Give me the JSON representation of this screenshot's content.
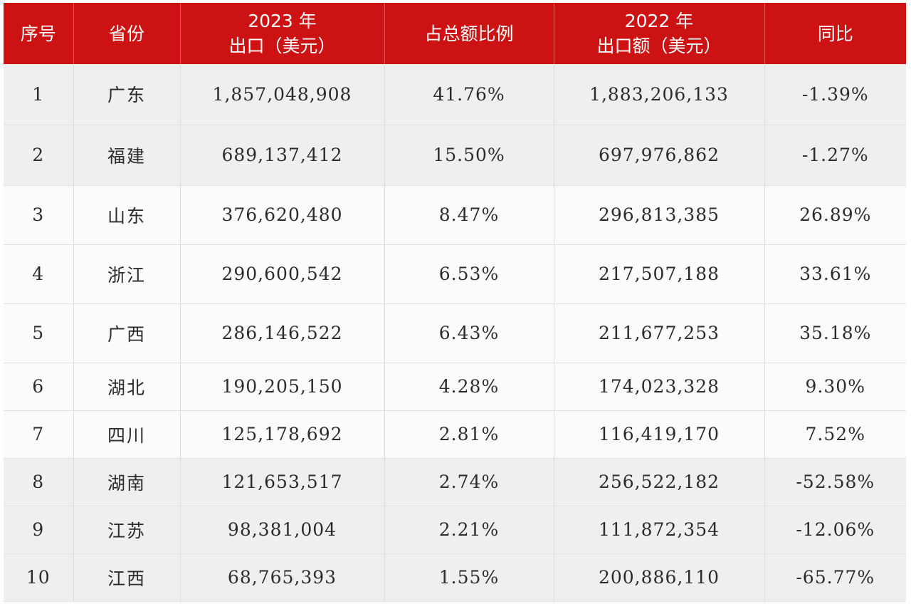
{
  "table": {
    "headers": [
      {
        "line1": "序号",
        "line2": ""
      },
      {
        "line1": "省份",
        "line2": ""
      },
      {
        "line1": "2023 年",
        "line2": "出口（美元）"
      },
      {
        "line1": "占总额比例",
        "line2": ""
      },
      {
        "line1": "2022 年",
        "line2": "出口额（美元）"
      },
      {
        "line1": "同比",
        "line2": ""
      }
    ],
    "rows": [
      {
        "no": "1",
        "province": "广东",
        "export_2023": "1,857,048,908",
        "share": "41.76%",
        "export_2022": "1,883,206,133",
        "yoy": "-1.39%"
      },
      {
        "no": "2",
        "province": "福建",
        "export_2023": "689,137,412",
        "share": "15.50%",
        "export_2022": "697,976,862",
        "yoy": "-1.27%"
      },
      {
        "no": "3",
        "province": "山东",
        "export_2023": "376,620,480",
        "share": "8.47%",
        "export_2022": "296,813,385",
        "yoy": "26.89%"
      },
      {
        "no": "4",
        "province": "浙江",
        "export_2023": "290,600,542",
        "share": "6.53%",
        "export_2022": "217,507,188",
        "yoy": "33.61%"
      },
      {
        "no": "5",
        "province": "广西",
        "export_2023": "286,146,522",
        "share": "6.43%",
        "export_2022": "211,677,253",
        "yoy": "35.18%"
      },
      {
        "no": "6",
        "province": "湖北",
        "export_2023": "190,205,150",
        "share": "4.28%",
        "export_2022": "174,023,328",
        "yoy": "9.30%"
      },
      {
        "no": "7",
        "province": "四川",
        "export_2023": "125,178,692",
        "share": "2.81%",
        "export_2022": "116,419,170",
        "yoy": "7.52%"
      },
      {
        "no": "8",
        "province": "湖南",
        "export_2023": "121,653,517",
        "share": "2.74%",
        "export_2022": "256,522,182",
        "yoy": "-52.58%"
      },
      {
        "no": "9",
        "province": "江苏",
        "export_2023": "98,381,004",
        "share": "2.21%",
        "export_2022": "111,872,354",
        "yoy": "-12.06%"
      },
      {
        "no": "10",
        "province": "江西",
        "export_2023": "68,765,393",
        "share": "1.55%",
        "export_2022": "200,886,110",
        "yoy": "-65.77%"
      }
    ]
  },
  "colors": {
    "header_bg": "#cc1212",
    "header_text": "#ffffff",
    "row_shaded": "#efefef",
    "row_plain": "#fbfbfb"
  }
}
